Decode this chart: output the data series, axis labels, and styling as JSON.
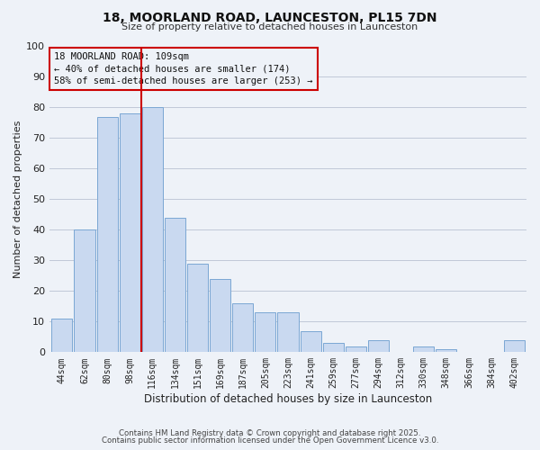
{
  "title": "18, MOORLAND ROAD, LAUNCESTON, PL15 7DN",
  "subtitle": "Size of property relative to detached houses in Launceston",
  "xlabel": "Distribution of detached houses by size in Launceston",
  "ylabel": "Number of detached properties",
  "bin_labels": [
    "44sqm",
    "62sqm",
    "80sqm",
    "98sqm",
    "116sqm",
    "134sqm",
    "151sqm",
    "169sqm",
    "187sqm",
    "205sqm",
    "223sqm",
    "241sqm",
    "259sqm",
    "277sqm",
    "294sqm",
    "312sqm",
    "330sqm",
    "348sqm",
    "366sqm",
    "384sqm",
    "402sqm"
  ],
  "bar_values": [
    11,
    40,
    77,
    78,
    80,
    44,
    29,
    24,
    16,
    13,
    13,
    7,
    3,
    2,
    4,
    0,
    2,
    1,
    0,
    0,
    4
  ],
  "bar_color": "#c9d9f0",
  "bar_edge_color": "#7ba7d4",
  "grid_color": "#c0c8d8",
  "background_color": "#eef2f8",
  "vline_color": "#cc0000",
  "vline_position": 3.5,
  "ylim": [
    0,
    100
  ],
  "yticks": [
    0,
    10,
    20,
    30,
    40,
    50,
    60,
    70,
    80,
    90,
    100
  ],
  "annotation_line1": "18 MOORLAND ROAD: 109sqm",
  "annotation_line2": "← 40% of detached houses are smaller (174)",
  "annotation_line3": "58% of semi-detached houses are larger (253) →",
  "footer_line1": "Contains HM Land Registry data © Crown copyright and database right 2025.",
  "footer_line2": "Contains public sector information licensed under the Open Government Licence v3.0."
}
